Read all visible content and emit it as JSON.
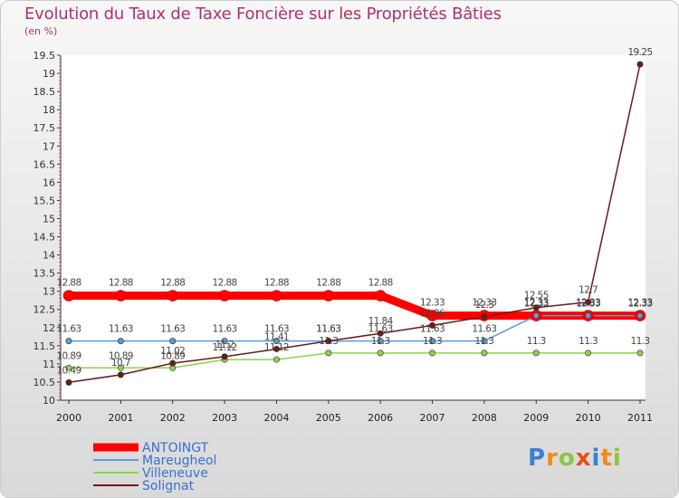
{
  "chart_data": {
    "type": "line",
    "title": "Evolution du Taux de Taxe Foncière sur les Propriétés Bâties",
    "ylabel": "(en %)",
    "xlabel": "",
    "x": [
      "2000",
      "2001",
      "2002",
      "2003",
      "2004",
      "2005",
      "2006",
      "2007",
      "2008",
      "2009",
      "2010",
      "2011"
    ],
    "ylim": [
      10,
      19.5
    ],
    "yticks": [
      "10",
      "10.5",
      "11",
      "11.5",
      "12",
      "12.5",
      "13",
      "13.5",
      "14",
      "14.5",
      "15",
      "15.5",
      "16",
      "16.5",
      "17",
      "17.5",
      "18",
      "18.5",
      "19",
      "19.5"
    ],
    "series": [
      {
        "name": "ANTOINGT",
        "color": "#ff0000",
        "values": [
          12.88,
          12.88,
          12.88,
          12.88,
          12.88,
          12.88,
          12.88,
          12.33,
          12.33,
          12.33,
          12.33,
          12.33
        ],
        "labels": [
          "12.88",
          "12.88",
          "12.88",
          "12.88",
          "12.88",
          "12.88",
          "12.88",
          "12.33",
          "12.33",
          "12.33",
          "12.33",
          "12.33"
        ]
      },
      {
        "name": "Mareugheol",
        "color": "#5b9bd5",
        "values": [
          11.63,
          11.63,
          11.63,
          11.63,
          11.63,
          11.63,
          11.63,
          11.63,
          11.63,
          12.33,
          12.33,
          12.33
        ],
        "labels": [
          "11.63",
          "11.63",
          "11.63",
          "11.63",
          "11.63",
          "11.63",
          "11.63",
          "11.63",
          "11.63",
          "12.33",
          "12.33",
          "12.33"
        ]
      },
      {
        "name": "Villeneuve",
        "color": "#8fd14f",
        "values": [
          10.89,
          10.89,
          10.89,
          11.12,
          11.12,
          11.3,
          11.3,
          11.3,
          11.3,
          11.3,
          11.3,
          11.3
        ],
        "labels": [
          "10.89",
          "10.89",
          "10.89",
          "11.12",
          "11.12",
          "11.3",
          "11.3",
          "11.3",
          "11.3",
          "11.3",
          "11.3",
          "11.3"
        ]
      },
      {
        "name": "Solignat",
        "color": "#6b1a1a",
        "values": [
          10.49,
          10.7,
          11.02,
          11.2,
          11.41,
          11.63,
          11.84,
          12.06,
          12.3,
          12.55,
          12.7,
          19.25
        ],
        "labels": [
          "10.49",
          "10.7",
          "11.02",
          "11.2",
          "11.41",
          "11.63",
          "11.84",
          "12.06",
          "12.3",
          "12.55",
          "12.7",
          "19.25"
        ]
      }
    ]
  },
  "logo": {
    "text": "Proxiti"
  }
}
